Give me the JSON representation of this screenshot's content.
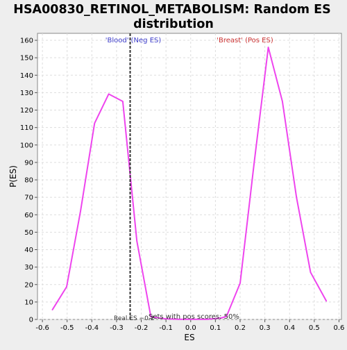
{
  "chart_data": {
    "type": "line",
    "title_line1": "HSA00830_RETINOL_METABOLISM: Random ES",
    "title_line2": "distribution",
    "xlabel": "ES",
    "ylabel": "P(ES)",
    "xlim": [
      -0.62,
      0.61
    ],
    "ylim": [
      0,
      164
    ],
    "x_ticks": [
      -0.6,
      -0.5,
      -0.4,
      -0.3,
      -0.2,
      -0.1,
      0.0,
      0.1,
      0.2,
      0.3,
      0.4,
      0.5,
      0.6
    ],
    "x_tick_labels": [
      "-0.6",
      "-0.5",
      "-0.4",
      "-0.3",
      "-0.2",
      "-0.1",
      "0.0",
      "0.1",
      "0.2",
      "0.3",
      "0.4",
      "0.5",
      "0.6"
    ],
    "y_ticks": [
      0,
      10,
      20,
      30,
      40,
      50,
      60,
      70,
      80,
      90,
      100,
      110,
      120,
      130,
      140,
      150,
      160
    ],
    "y_tick_labels": [
      "0",
      "10",
      "20",
      "30",
      "40",
      "50",
      "60",
      "70",
      "80",
      "90",
      "100",
      "110",
      "120",
      "130",
      "140",
      "150",
      "160"
    ],
    "grid": true,
    "series": [
      {
        "color": "#ee44ee",
        "x": [
          -0.56,
          -0.502,
          -0.446,
          -0.389,
          -0.332,
          -0.275,
          -0.218,
          -0.161,
          -0.105,
          -0.048,
          0.009,
          0.066,
          0.123,
          0.145,
          0.2,
          0.257,
          0.314,
          0.371,
          0.428,
          0.485,
          0.549
        ],
        "y": [
          5.5,
          18.7,
          62,
          112.5,
          129.2,
          125,
          45,
          1.5,
          0.4,
          0.1,
          0.1,
          0.1,
          0.8,
          1.8,
          20.8,
          90,
          156,
          125,
          70,
          27,
          10.5
        ]
      }
    ],
    "real_es": {
      "value": -0.245,
      "color": "#333333",
      "label": "Real ES −0.2"
    },
    "annotations": {
      "neg_label": "'Blood' (Neg ES)",
      "neg_color": "#4040cc",
      "pos_label": "'Breast' (Pos ES)",
      "pos_color": "#cc3333",
      "sets_text": "Sets with pos scores: 50%"
    },
    "colors": {
      "background": "#eeeeee",
      "plot_bg": "#ffffff",
      "grid": "#dddddd"
    }
  }
}
